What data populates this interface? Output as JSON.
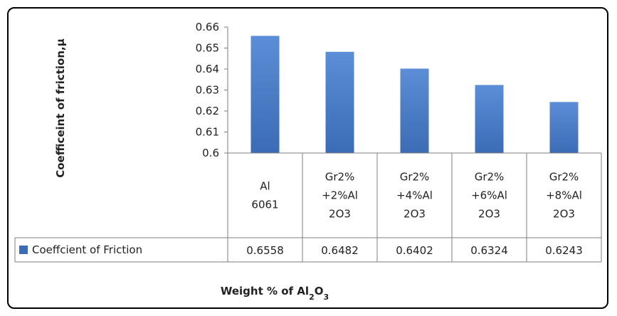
{
  "colors": {
    "bar": "#3b6cb5",
    "bar_light": "#5b8ed6",
    "grid": "#7f7f7f"
  },
  "chart_data": {
    "type": "bar",
    "ylabel": "Coefficeint of friction,μ",
    "xlabel": {
      "prefix": "Weight  % of Al",
      "sub1": "2",
      "mid": "O",
      "sub2": "3"
    },
    "ylim": [
      0.6,
      0.66
    ],
    "yticks": [
      "0.66",
      "0.65",
      "0.64",
      "0.63",
      "0.62",
      "0.61",
      "0.6"
    ],
    "categories": [
      [
        "Al",
        "6061"
      ],
      [
        "Gr2%",
        "+2%Al",
        "2O3"
      ],
      [
        "Gr2%",
        "+4%Al",
        "2O3"
      ],
      [
        "Gr2%",
        "+6%Al",
        "2O3"
      ],
      [
        "Gr2%",
        "+8%Al",
        "2O3"
      ]
    ],
    "series": [
      {
        "name": "Coeffcient of Friction",
        "values": [
          0.6558,
          0.6482,
          0.6402,
          0.6324,
          0.6243
        ]
      }
    ],
    "table_values": [
      "0.6558",
      "0.6482",
      "0.6402",
      "0.6324",
      "0.6243"
    ],
    "grid": false,
    "legend": "data-table"
  }
}
